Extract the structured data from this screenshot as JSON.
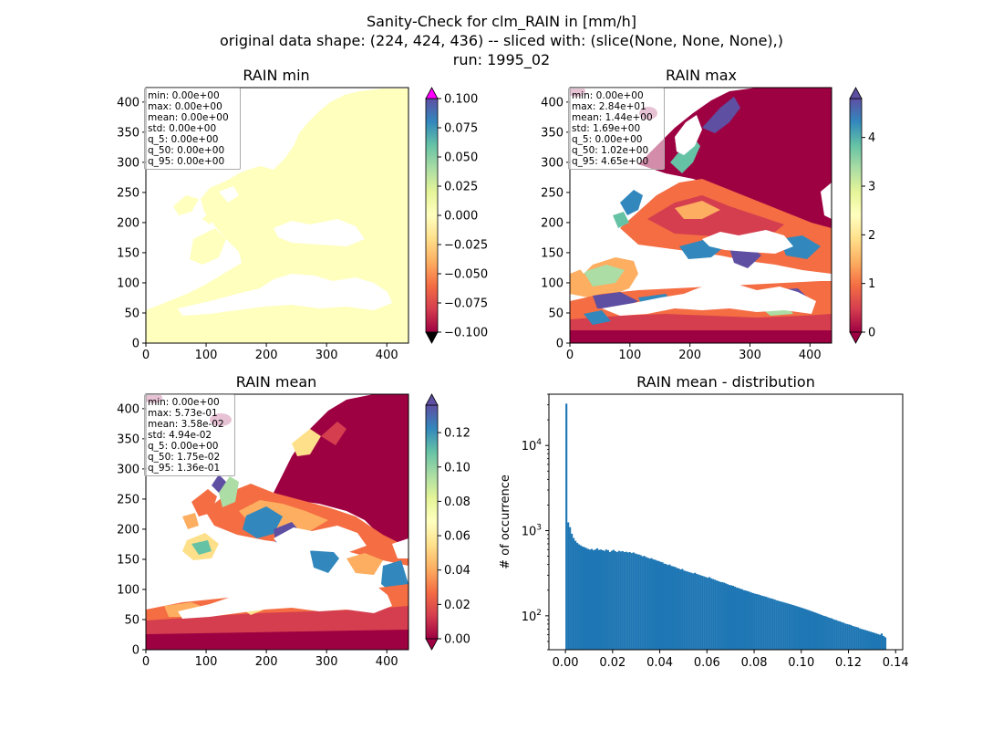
{
  "suptitle": {
    "line1": "Sanity-Check for clm_RAIN in [mm/h]",
    "line2": "original data shape: (224, 424, 436) -- sliced with: (slice(None, None, None),)",
    "line3": "run: 1995_02"
  },
  "chart_data": [
    {
      "type": "heatmap",
      "title": "RAIN min",
      "xticks": [
        "0",
        "100",
        "200",
        "300",
        "400"
      ],
      "yticks": [
        "0",
        "50",
        "100",
        "150",
        "200",
        "250",
        "300",
        "350",
        "400"
      ],
      "xlim": [
        0,
        436
      ],
      "ylim": [
        0,
        424
      ],
      "colormap": "Spectral",
      "colorbar": {
        "min": -0.1,
        "max": 0.1,
        "extend": "both",
        "ticks": [
          "0.100",
          "0.075",
          "0.050",
          "0.025",
          "0.000",
          "−0.025",
          "−0.050",
          "−0.075",
          "−0.100"
        ]
      },
      "field_color": "#ffffbe",
      "stats": [
        "min: 0.00e+00",
        "max: 0.00e+00",
        "mean: 0.00e+00",
        "std: 0.00e+00",
        "q_5: 0.00e+00",
        "q_50: 0.00e+00",
        "q_95: 0.00e+00"
      ]
    },
    {
      "type": "heatmap",
      "title": "RAIN max",
      "xticks": [
        "0",
        "100",
        "200",
        "300",
        "400"
      ],
      "yticks": [
        "0",
        "50",
        "100",
        "150",
        "200",
        "250",
        "300",
        "350",
        "400"
      ],
      "xlim": [
        0,
        436
      ],
      "ylim": [
        0,
        424
      ],
      "colormap": "Spectral",
      "colorbar": {
        "min": 0,
        "max": 4.8,
        "extend": "both",
        "ticks": [
          "0",
          "1",
          "2",
          "3",
          "4"
        ]
      },
      "stats": [
        "min: 0.00e+00",
        "max: 2.84e+01",
        "mean: 1.44e+00",
        "std: 1.69e+00",
        "q_5: 0.00e+00",
        "q_50: 1.02e+00",
        "q_95: 4.65e+00"
      ]
    },
    {
      "type": "heatmap",
      "title": "RAIN mean",
      "xticks": [
        "0",
        "100",
        "200",
        "300",
        "400"
      ],
      "yticks": [
        "0",
        "50",
        "100",
        "150",
        "200",
        "250",
        "300",
        "350",
        "400"
      ],
      "xlim": [
        0,
        436
      ],
      "ylim": [
        0,
        424
      ],
      "colormap": "Spectral",
      "colorbar": {
        "min": 0,
        "max": 0.136,
        "extend": "both",
        "ticks": [
          "0.00",
          "0.02",
          "0.04",
          "0.06",
          "0.08",
          "0.10",
          "0.12"
        ]
      },
      "stats": [
        "min: 0.00e+00",
        "max: 5.73e-01",
        "mean: 3.58e-02",
        "std: 4.94e-02",
        "q_5: 0.00e+00",
        "q_50: 1.75e-02",
        "q_95: 1.36e-01"
      ]
    },
    {
      "type": "bar",
      "title": "RAIN mean - distribution",
      "ylabel": "# of occurrence",
      "yscale": "log",
      "ylim": [
        40,
        40000
      ],
      "xlim": [
        -0.007,
        0.143
      ],
      "xticks": [
        "0.00",
        "0.02",
        "0.04",
        "0.06",
        "0.08",
        "0.10",
        "0.12",
        "0.14"
      ],
      "bar_color": "#1f77b4",
      "bin_start": 0.0,
      "bin_end": 0.136,
      "values": [
        31000,
        1250,
        1100,
        920,
        820,
        760,
        720,
        690,
        670,
        650,
        640,
        625,
        610,
        600,
        610,
        590,
        600,
        620,
        595,
        600,
        590,
        580,
        600,
        590,
        560,
        580,
        595,
        575,
        560,
        580,
        570,
        575,
        560,
        565,
        555,
        560,
        545,
        555,
        540,
        530,
        525,
        515,
        500,
        505,
        490,
        480,
        470,
        475,
        460,
        455,
        445,
        440,
        430,
        425,
        410,
        405,
        395,
        400,
        385,
        380,
        375,
        365,
        360,
        350,
        355,
        340,
        335,
        330,
        325,
        320,
        315,
        320,
        310,
        305,
        300,
        295,
        290,
        285,
        280,
        285,
        275,
        270,
        265,
        260,
        255,
        250,
        248,
        245,
        240,
        235,
        230,
        228,
        225,
        220,
        215,
        212,
        208,
        205,
        200,
        198,
        195,
        192,
        188,
        185,
        182,
        180,
        178,
        175,
        172,
        170,
        168,
        165,
        162,
        160,
        158,
        155,
        152,
        150,
        148,
        146,
        144,
        142,
        140,
        138,
        136,
        134,
        132,
        130,
        128,
        126,
        124,
        122,
        120,
        118,
        116,
        114,
        112,
        110,
        108,
        106,
        104,
        102,
        100,
        99,
        97,
        95,
        94,
        92,
        90,
        89,
        87,
        86,
        84,
        83,
        81,
        80,
        79,
        78,
        76,
        75,
        74,
        73,
        71,
        70,
        69,
        68,
        67,
        66,
        65,
        64,
        63,
        62,
        61,
        60,
        62,
        58,
        56
      ]
    }
  ]
}
